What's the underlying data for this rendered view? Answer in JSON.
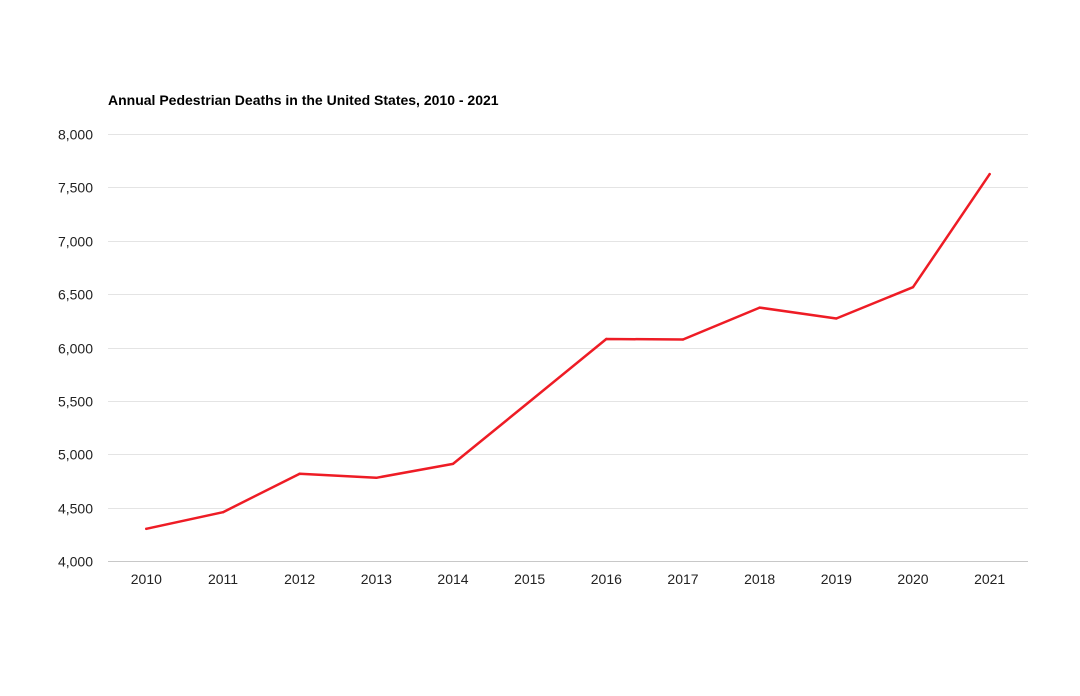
{
  "chart_data": {
    "type": "line",
    "title": "Annual Pedestrian Deaths in the United States, 2010 - 2021",
    "xlabel": "",
    "ylabel": "",
    "categories": [
      "2010",
      "2011",
      "2012",
      "2013",
      "2014",
      "2015",
      "2016",
      "2017",
      "2018",
      "2019",
      "2020",
      "2021"
    ],
    "series": [
      {
        "values": [
          4302,
          4457,
          4818,
          4779,
          4910,
          5494,
          6080,
          6075,
          6374,
          6272,
          6565,
          7624
        ],
        "color": "#ee1c25"
      }
    ],
    "ylim": [
      4000,
      8000
    ],
    "yticks": [
      4000,
      4500,
      5000,
      5500,
      6000,
      6500,
      7000,
      7500,
      8000
    ],
    "ytick_labels": [
      "4,000",
      "4,500",
      "5,000",
      "5,500",
      "6,000",
      "6,500",
      "7,000",
      "7,500",
      "8,000"
    ],
    "grid": true,
    "legend": "none"
  }
}
